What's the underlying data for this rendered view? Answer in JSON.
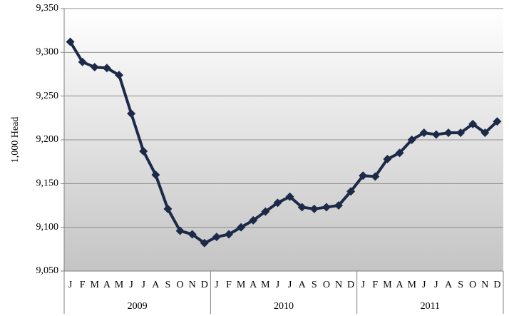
{
  "chart_data": {
    "type": "line",
    "y_label": "1,000 Head",
    "categories": [
      "J",
      "F",
      "M",
      "A",
      "M",
      "J",
      "J",
      "A",
      "S",
      "O",
      "N",
      "D",
      "J",
      "F",
      "M",
      "A",
      "M",
      "J",
      "J",
      "A",
      "S",
      "O",
      "N",
      "D",
      "J",
      "F",
      "M",
      "A",
      "M",
      "J",
      "J",
      "A",
      "S",
      "O",
      "N",
      "D"
    ],
    "x_groups": [
      "2009",
      "2010",
      "2011"
    ],
    "series": [
      {
        "color": "#1c2a47",
        "values": [
          9312,
          9289,
          9283,
          9282,
          9274,
          9230,
          9187,
          9160,
          9121,
          9096,
          9092,
          9082,
          9089,
          9092,
          9100,
          9108,
          9118,
          9128,
          9135,
          9123,
          9121,
          9123,
          9125,
          9141,
          9159,
          9158,
          9178,
          9185,
          9200,
          9208,
          9206,
          9208,
          9208,
          9218,
          9208,
          9221
        ]
      }
    ],
    "ylim": [
      9050,
      9350
    ],
    "yticks": [
      {
        "value": 9050,
        "label": "9,050"
      },
      {
        "value": 9100,
        "label": "9,100"
      },
      {
        "value": 9150,
        "label": "9,150"
      },
      {
        "value": 9200,
        "label": "9,200"
      },
      {
        "value": 9250,
        "label": "9,250"
      },
      {
        "value": 9300,
        "label": "9,300"
      },
      {
        "value": 9350,
        "label": "9,350"
      }
    ],
    "grid": true
  }
}
